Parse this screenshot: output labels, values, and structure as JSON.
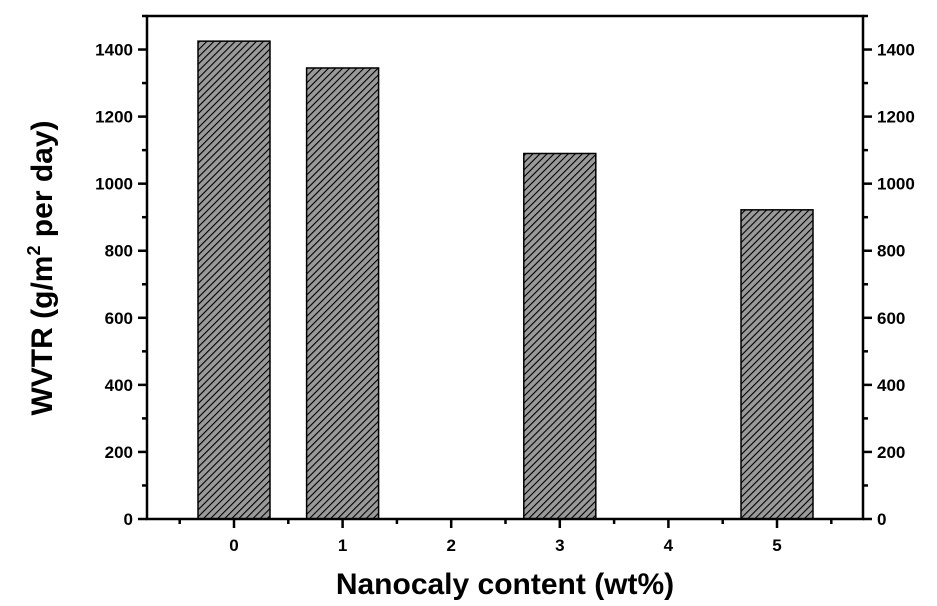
{
  "chart_data": {
    "type": "bar",
    "title": "",
    "xlabel": "Nanocaly content (wt%)",
    "ylabel_parts": [
      "WVTR (g/m",
      "2",
      " per day)"
    ],
    "categories": [
      "0",
      "1",
      "2",
      "3",
      "4",
      "5"
    ],
    "series": [
      {
        "values": [
          1425,
          1345,
          null,
          1090,
          null,
          922
        ]
      }
    ],
    "ylim": [
      0,
      1500
    ],
    "yticks": [
      "0",
      "200",
      "400",
      "600",
      "800",
      "1000",
      "1200",
      "1400"
    ],
    "right_axis_ticks": true,
    "bar_fill": "diagonal-hatch",
    "colors": {
      "bar_fill": "#9a9a9a",
      "hatch": "#000000",
      "axis": "#000000"
    },
    "grid": false,
    "legend": "none"
  }
}
